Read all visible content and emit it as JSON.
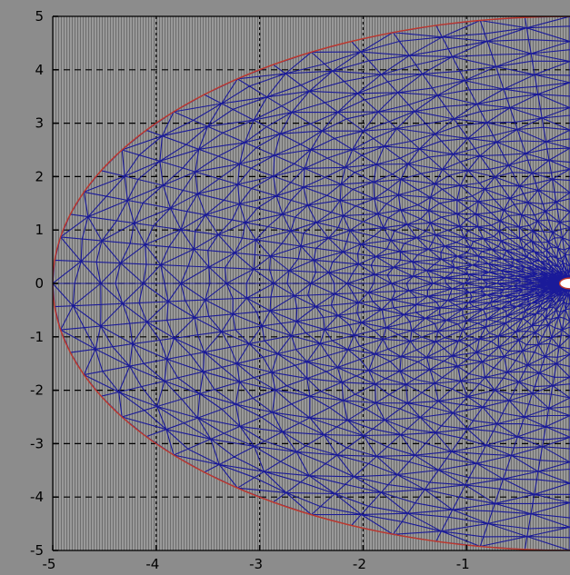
{
  "chart_data": {
    "type": "mesh",
    "title": "",
    "xlabel": "",
    "ylabel": "",
    "xlim": [
      -5,
      0
    ],
    "ylim": [
      -5,
      5
    ],
    "grid": true,
    "x_ticks": [
      "-5",
      "-4",
      "-3",
      "-2",
      "-1"
    ],
    "y_ticks": [
      "5",
      "4",
      "3",
      "2",
      "1",
      "0",
      "-1",
      "-2",
      "-3",
      "-4",
      "-5"
    ],
    "boundary": {
      "shape": "ellipse",
      "center": [
        0,
        0
      ],
      "semi_axis_x": 5,
      "semi_axis_y": 5,
      "color": "#c0392b"
    },
    "inner_hole": {
      "shape": "circle",
      "center": [
        0,
        0
      ],
      "radius": 0.1
    },
    "mesh": {
      "color": "#1a1a99",
      "radial_layers": 26,
      "angular_divisions": 36,
      "element_type": "triangle"
    },
    "colors": {
      "background": "#8c8c8c",
      "axes": "#999999",
      "grid": "#000000",
      "mesh": "#1a1a99",
      "boundary": "#c0392b"
    }
  }
}
